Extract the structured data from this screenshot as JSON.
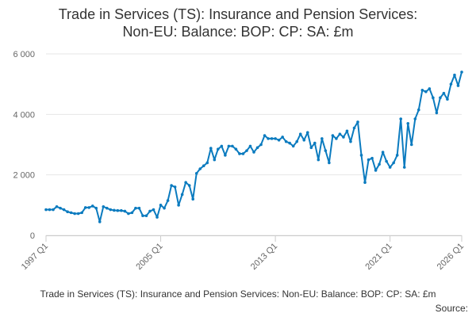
{
  "chart_data": {
    "type": "line",
    "title": [
      "Trade in Services (TS): Insurance and Pension Services:",
      "Non-EU: Balance: BOP: CP: SA: £m"
    ],
    "footer": "Trade in Services (TS): Insurance and Pension Services: Non-EU: Balance: BOP: CP: SA: £m",
    "source": "Source:",
    "categories": [
      "1997 Q1",
      null,
      null,
      null,
      null,
      null,
      null,
      null,
      null,
      null,
      null,
      null,
      null,
      null,
      null,
      null,
      null,
      null,
      null,
      null,
      null,
      null,
      null,
      null,
      null,
      null,
      null,
      null,
      null,
      null,
      null,
      null,
      "2005 Q1",
      null,
      null,
      null,
      null,
      null,
      null,
      null,
      null,
      null,
      null,
      null,
      null,
      null,
      null,
      null,
      null,
      null,
      null,
      null,
      null,
      null,
      null,
      null,
      null,
      null,
      null,
      null,
      null,
      null,
      null,
      null,
      "2013 Q1",
      null,
      null,
      null,
      null,
      null,
      null,
      null,
      null,
      null,
      null,
      null,
      null,
      null,
      null,
      null,
      null,
      null,
      null,
      null,
      null,
      null,
      null,
      null,
      null,
      null,
      null,
      null,
      null,
      null,
      null,
      null,
      "2021 Q1",
      null,
      null,
      null,
      null,
      null,
      null,
      null,
      null,
      null,
      null,
      null,
      null,
      null,
      null,
      null,
      null,
      null,
      null,
      null,
      "2026 Q1"
    ],
    "values": [
      850,
      850,
      850,
      950,
      900,
      850,
      780,
      750,
      720,
      720,
      750,
      920,
      920,
      970,
      900,
      450,
      950,
      900,
      850,
      830,
      820,
      820,
      800,
      720,
      750,
      900,
      900,
      650,
      650,
      800,
      850,
      600,
      1000,
      900,
      1150,
      1650,
      1600,
      1000,
      1350,
      1750,
      1650,
      1200,
      2050,
      2200,
      2300,
      2400,
      2880,
      2500,
      2850,
      2950,
      2650,
      2950,
      2950,
      2850,
      2700,
      2700,
      2800,
      2950,
      2750,
      2900,
      3000,
      3300,
      3200,
      3200,
      3200,
      3150,
      3250,
      3100,
      3050,
      2950,
      3100,
      3350,
      3150,
      3400,
      2900,
      3050,
      2500,
      3200,
      2800,
      2400,
      3300,
      3200,
      3350,
      3250,
      3450,
      3100,
      3550,
      3750,
      2650,
      1750,
      2500,
      2550,
      2150,
      2350,
      2750,
      2450,
      2250,
      2400,
      2650,
      3850,
      2250,
      3700,
      3000,
      3850,
      4150,
      4800,
      4750,
      4850,
      4550,
      4050,
      4550,
      4700,
      4500,
      5000,
      5300,
      4950,
      5400
    ],
    "color": "#0b7bbf",
    "ylim": [
      0,
      6000
    ],
    "yticks": [
      {
        "value": 0,
        "label": "0"
      },
      {
        "value": 2000,
        "label": "2 000"
      },
      {
        "value": 4000,
        "label": "4 000"
      },
      {
        "value": 6000,
        "label": "6 000"
      }
    ],
    "grid": true
  }
}
